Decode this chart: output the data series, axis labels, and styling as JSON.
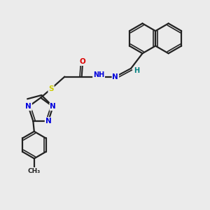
{
  "background_color": "#ebebeb",
  "bond_color": "#222222",
  "atom_colors": {
    "N": "#0000dd",
    "O": "#dd0000",
    "S": "#cccc00",
    "H": "#008080",
    "C": "#222222"
  },
  "font_size_atom": 7.0,
  "fig_width": 3.0,
  "fig_height": 3.0
}
